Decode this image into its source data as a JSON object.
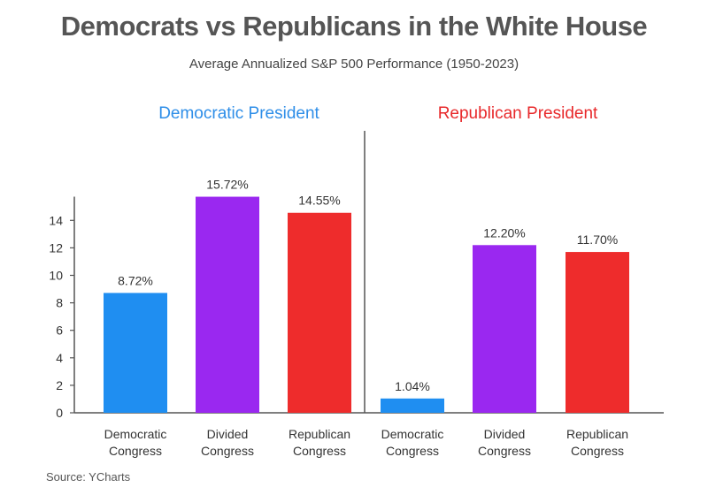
{
  "title": "Democrats vs Republicans in the White House",
  "subtitle": "Average Annualized S&P 500 Performance (1950-2023)",
  "source": "Source: YCharts",
  "colors": {
    "democratic": "#1f8ef1",
    "divided": "#9a28f0",
    "republican": "#ee2c2c",
    "axis": "#555555"
  },
  "chart_data": {
    "type": "bar",
    "title": "Democrats vs Republicans in the White House",
    "subtitle": "Average Annualized S&P 500 Performance (1950-2023)",
    "ylim": [
      0,
      15.72
    ],
    "yticks": [
      0,
      2,
      4,
      6,
      8,
      10,
      12,
      14
    ],
    "grid": false,
    "groups": [
      {
        "name": "Democratic President",
        "bars": [
          {
            "category": [
              "Democratic",
              "Congress"
            ],
            "value": 8.72,
            "label": "8.72%",
            "color": "democratic"
          },
          {
            "category": [
              "Divided",
              "Congress"
            ],
            "value": 15.72,
            "label": "15.72%",
            "color": "divided"
          },
          {
            "category": [
              "Republican",
              "Congress"
            ],
            "value": 14.55,
            "label": "14.55%",
            "color": "republican"
          }
        ]
      },
      {
        "name": "Republican President",
        "bars": [
          {
            "category": [
              "Democratic",
              "Congress"
            ],
            "value": 1.04,
            "label": "1.04%",
            "color": "democratic"
          },
          {
            "category": [
              "Divided",
              "Congress"
            ],
            "value": 12.2,
            "label": "12.20%",
            "color": "divided"
          },
          {
            "category": [
              "Republican",
              "Congress"
            ],
            "value": 11.7,
            "label": "11.70%",
            "color": "republican"
          }
        ]
      }
    ]
  }
}
